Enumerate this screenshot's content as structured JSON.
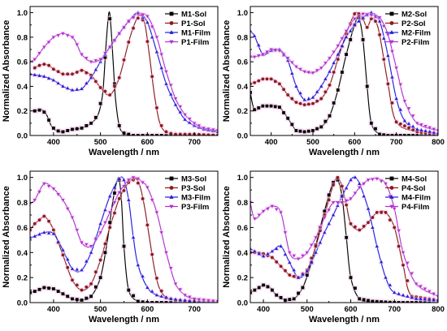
{
  "colors": {
    "Sol_M": "#000000",
    "Sol_P": "#8b1a1a",
    "Film_M": "#1f1fdc",
    "Film_P": "#b030d0"
  },
  "chart_data": [
    {
      "type": "line",
      "panel": "top-left",
      "xlabel": "Wavelength / nm",
      "ylabel": "Normalized Absorbance",
      "xlim": [
        350,
        750
      ],
      "ylim": [
        0,
        1.05
      ],
      "xticks": [
        400,
        500,
        600,
        700
      ],
      "yticks": [
        0.0,
        0.2,
        0.4,
        0.6,
        0.8,
        1.0
      ],
      "legend_position": "top-right",
      "series": [
        {
          "name": "M1-Sol",
          "color_key": "Sol_M",
          "marker": "square",
          "x": [
            360,
            375,
            385,
            395,
            405,
            420,
            440,
            460,
            480,
            495,
            505,
            512,
            518,
            522,
            527,
            532,
            540,
            550,
            570,
            600,
            650,
            700,
            750
          ],
          "y": [
            0.2,
            0.21,
            0.17,
            0.08,
            0.04,
            0.03,
            0.05,
            0.06,
            0.1,
            0.17,
            0.35,
            0.75,
            1.0,
            0.9,
            0.6,
            0.3,
            0.08,
            0.02,
            0.0,
            0.0,
            0.0,
            0.0,
            0.0
          ]
        },
        {
          "name": "P1-Sol",
          "color_key": "Sol_P",
          "marker": "circle",
          "x": [
            360,
            370,
            380,
            390,
            400,
            420,
            440,
            460,
            480,
            500,
            520,
            540,
            560,
            575,
            585,
            595,
            605,
            615,
            625,
            635,
            645,
            660,
            680,
            700,
            750
          ],
          "y": [
            0.55,
            0.57,
            0.58,
            0.57,
            0.54,
            0.5,
            0.5,
            0.53,
            0.49,
            0.39,
            0.33,
            0.47,
            0.76,
            0.93,
            0.98,
            0.9,
            0.63,
            0.33,
            0.12,
            0.04,
            0.02,
            0.01,
            0.01,
            0.01,
            0.0
          ]
        },
        {
          "name": "M1-Film",
          "color_key": "Film_M",
          "marker": "triangle-up",
          "x": [
            350,
            380,
            400,
            420,
            440,
            460,
            480,
            500,
            520,
            540,
            560,
            580,
            600,
            620,
            640,
            660,
            680,
            700,
            720,
            750
          ],
          "y": [
            0.5,
            0.48,
            0.45,
            0.4,
            0.37,
            0.38,
            0.47,
            0.6,
            0.72,
            0.83,
            0.93,
            1.0,
            0.92,
            0.68,
            0.42,
            0.25,
            0.13,
            0.08,
            0.05,
            0.03
          ]
        },
        {
          "name": "P1-Film",
          "color_key": "Film_P",
          "marker": "triangle-down",
          "x": [
            350,
            360,
            380,
            400,
            420,
            440,
            450,
            460,
            480,
            500,
            520,
            540,
            560,
            580,
            600,
            620,
            640,
            660,
            680,
            700,
            720,
            750
          ],
          "y": [
            0.6,
            0.62,
            0.72,
            0.8,
            0.83,
            0.8,
            0.74,
            0.66,
            0.6,
            0.62,
            0.72,
            0.83,
            0.93,
            0.99,
            0.97,
            0.8,
            0.52,
            0.3,
            0.17,
            0.1,
            0.06,
            0.04
          ]
        }
      ]
    },
    {
      "type": "line",
      "panel": "top-right",
      "xlabel": "Wavelength / nm",
      "ylabel": "Normalized Absorbance",
      "xlim": [
        350,
        800
      ],
      "ylim": [
        0,
        1.05
      ],
      "xticks": [
        400,
        500,
        600,
        700,
        800
      ],
      "yticks": [
        0.0,
        0.2,
        0.4,
        0.6,
        0.8,
        1.0
      ],
      "legend_position": "top-right",
      "series": [
        {
          "name": "M2-Sol",
          "color_key": "Sol_M",
          "marker": "square",
          "x": [
            350,
            360,
            380,
            400,
            420,
            440,
            460,
            480,
            500,
            520,
            540,
            560,
            580,
            600,
            610,
            620,
            630,
            640,
            660,
            680,
            700,
            750,
            800
          ],
          "y": [
            0.35,
            0.21,
            0.24,
            0.24,
            0.23,
            0.14,
            0.04,
            0.03,
            0.04,
            0.07,
            0.16,
            0.37,
            0.66,
            0.9,
            0.96,
            0.78,
            0.4,
            0.1,
            0.01,
            0.0,
            0.0,
            0.0,
            0.0
          ]
        },
        {
          "name": "P2-Sol",
          "color_key": "Sol_P",
          "marker": "circle",
          "x": [
            350,
            360,
            380,
            400,
            420,
            440,
            460,
            480,
            500,
            520,
            540,
            560,
            580,
            600,
            610,
            620,
            630,
            640,
            650,
            660,
            680,
            700,
            750,
            800
          ],
          "y": [
            0.42,
            0.43,
            0.46,
            0.46,
            0.42,
            0.33,
            0.27,
            0.25,
            0.26,
            0.3,
            0.41,
            0.62,
            0.83,
            0.99,
            0.99,
            0.95,
            0.88,
            0.95,
            0.93,
            0.82,
            0.42,
            0.11,
            0.03,
            0.01
          ]
        },
        {
          "name": "M2-Film",
          "color_key": "Film_M",
          "marker": "triangle-up",
          "x": [
            350,
            360,
            380,
            400,
            420,
            440,
            460,
            480,
            500,
            520,
            540,
            560,
            580,
            600,
            620,
            640,
            660,
            680,
            700,
            720,
            750,
            800
          ],
          "y": [
            0.85,
            0.81,
            0.66,
            0.69,
            0.7,
            0.61,
            0.4,
            0.29,
            0.31,
            0.4,
            0.52,
            0.66,
            0.8,
            0.9,
            0.96,
            1.0,
            0.93,
            0.65,
            0.3,
            0.12,
            0.05,
            0.02
          ]
        },
        {
          "name": "P2-Film",
          "color_key": "Film_P",
          "marker": "triangle-down",
          "x": [
            350,
            360,
            380,
            400,
            420,
            440,
            460,
            480,
            500,
            520,
            540,
            560,
            580,
            600,
            620,
            640,
            660,
            680,
            700,
            720,
            750,
            800
          ],
          "y": [
            0.64,
            0.64,
            0.66,
            0.7,
            0.69,
            0.63,
            0.56,
            0.52,
            0.51,
            0.55,
            0.63,
            0.73,
            0.85,
            0.95,
            0.99,
            0.98,
            0.96,
            0.82,
            0.55,
            0.28,
            0.1,
            0.04
          ]
        }
      ]
    },
    {
      "type": "line",
      "panel": "bottom-left",
      "xlabel": "Wavelength / nm",
      "ylabel": "Normalized Absorbance",
      "xlim": [
        350,
        750
      ],
      "ylim": [
        0,
        1.05
      ],
      "xticks": [
        400,
        500,
        600,
        700
      ],
      "yticks": [
        0.0,
        0.2,
        0.4,
        0.6,
        0.8,
        1.0
      ],
      "legend_position": "top-right",
      "series": [
        {
          "name": "M3-Sol",
          "color_key": "Sol_M",
          "marker": "square",
          "x": [
            350,
            360,
            380,
            400,
            420,
            440,
            460,
            480,
            500,
            515,
            525,
            535,
            540,
            545,
            550,
            560,
            580,
            600,
            650,
            700,
            750
          ],
          "y": [
            0.08,
            0.09,
            0.12,
            0.11,
            0.07,
            0.03,
            0.02,
            0.05,
            0.2,
            0.5,
            0.78,
            0.97,
            0.98,
            0.8,
            0.45,
            0.1,
            0.01,
            0.0,
            0.0,
            0.0,
            0.0
          ]
        },
        {
          "name": "P3-Sol",
          "color_key": "Sol_P",
          "marker": "circle",
          "x": [
            350,
            360,
            370,
            380,
            390,
            400,
            420,
            440,
            460,
            480,
            500,
            520,
            540,
            560,
            575,
            585,
            595,
            605,
            615,
            625,
            640,
            660,
            700,
            750
          ],
          "y": [
            0.58,
            0.63,
            0.66,
            0.69,
            0.65,
            0.58,
            0.38,
            0.18,
            0.1,
            0.15,
            0.34,
            0.6,
            0.83,
            0.96,
            0.99,
            0.92,
            0.74,
            0.5,
            0.27,
            0.12,
            0.04,
            0.02,
            0.01,
            0.0
          ]
        },
        {
          "name": "M3-Film",
          "color_key": "Film_M",
          "marker": "triangle-up",
          "x": [
            350,
            360,
            380,
            400,
            420,
            440,
            460,
            480,
            500,
            520,
            540,
            550,
            560,
            570,
            580,
            600,
            620,
            650,
            700,
            750
          ],
          "y": [
            0.52,
            0.53,
            0.56,
            0.55,
            0.42,
            0.27,
            0.26,
            0.4,
            0.63,
            0.85,
            0.99,
            0.98,
            0.82,
            0.52,
            0.3,
            0.12,
            0.06,
            0.03,
            0.01,
            0.0
          ]
        },
        {
          "name": "P3-Film",
          "color_key": "Film_P",
          "marker": "triangle-down",
          "x": [
            350,
            360,
            380,
            400,
            420,
            440,
            460,
            480,
            500,
            520,
            540,
            560,
            570,
            580,
            590,
            600,
            620,
            640,
            660,
            680,
            700,
            750
          ],
          "y": [
            0.79,
            0.82,
            0.95,
            0.91,
            0.82,
            0.68,
            0.48,
            0.45,
            0.56,
            0.72,
            0.88,
            0.98,
            1.0,
            0.99,
            0.96,
            0.92,
            0.72,
            0.4,
            0.15,
            0.06,
            0.03,
            0.01
          ]
        }
      ]
    },
    {
      "type": "line",
      "panel": "bottom-right",
      "xlabel": "Wavelength / nm",
      "ylabel": "Normalized Absorbance",
      "xlim": [
        370,
        800
      ],
      "ylim": [
        0,
        1.05
      ],
      "xticks": [
        400,
        500,
        600,
        700,
        800
      ],
      "yticks": [
        0.0,
        0.2,
        0.4,
        0.6,
        0.8,
        1.0
      ],
      "legend_position": "top-right",
      "series": [
        {
          "name": "M4-Sol",
          "color_key": "Sol_M",
          "marker": "square",
          "x": [
            370,
            385,
            400,
            415,
            430,
            450,
            470,
            490,
            510,
            530,
            550,
            560,
            570,
            580,
            590,
            600,
            620,
            650,
            700,
            750,
            800
          ],
          "y": [
            0.08,
            0.11,
            0.14,
            0.12,
            0.06,
            0.02,
            0.03,
            0.12,
            0.32,
            0.6,
            0.86,
            0.96,
            0.98,
            0.85,
            0.52,
            0.2,
            0.03,
            0.01,
            0.0,
            0.0,
            0.0
          ]
        },
        {
          "name": "P4-Sol",
          "color_key": "Sol_P",
          "marker": "circle",
          "x": [
            370,
            380,
            400,
            420,
            440,
            460,
            480,
            500,
            520,
            540,
            560,
            570,
            580,
            590,
            600,
            620,
            640,
            660,
            680,
            700,
            720,
            740,
            800
          ],
          "y": [
            0.4,
            0.4,
            0.39,
            0.36,
            0.29,
            0.22,
            0.2,
            0.26,
            0.45,
            0.7,
            0.94,
            1.0,
            0.93,
            0.78,
            0.63,
            0.58,
            0.64,
            0.72,
            0.72,
            0.6,
            0.3,
            0.05,
            0.02
          ]
        },
        {
          "name": "M4-Film",
          "color_key": "Film_M",
          "marker": "triangle-up",
          "x": [
            370,
            380,
            400,
            420,
            440,
            460,
            480,
            500,
            520,
            540,
            560,
            580,
            600,
            610,
            620,
            640,
            660,
            680,
            700,
            750,
            800
          ],
          "y": [
            0.43,
            0.41,
            0.37,
            0.41,
            0.45,
            0.32,
            0.2,
            0.25,
            0.4,
            0.56,
            0.7,
            0.85,
            0.98,
            1.0,
            0.95,
            0.75,
            0.45,
            0.2,
            0.08,
            0.03,
            0.02
          ]
        },
        {
          "name": "P4-Film",
          "color_key": "Film_P",
          "marker": "triangle-down",
          "x": [
            370,
            380,
            400,
            420,
            440,
            460,
            480,
            500,
            520,
            540,
            560,
            580,
            600,
            620,
            640,
            660,
            680,
            700,
            720,
            750,
            800
          ],
          "y": [
            0.8,
            0.67,
            0.73,
            0.77,
            0.72,
            0.4,
            0.35,
            0.4,
            0.52,
            0.68,
            0.8,
            0.8,
            0.83,
            0.92,
            0.98,
            0.99,
            0.95,
            0.75,
            0.4,
            0.15,
            0.05
          ]
        }
      ]
    }
  ]
}
